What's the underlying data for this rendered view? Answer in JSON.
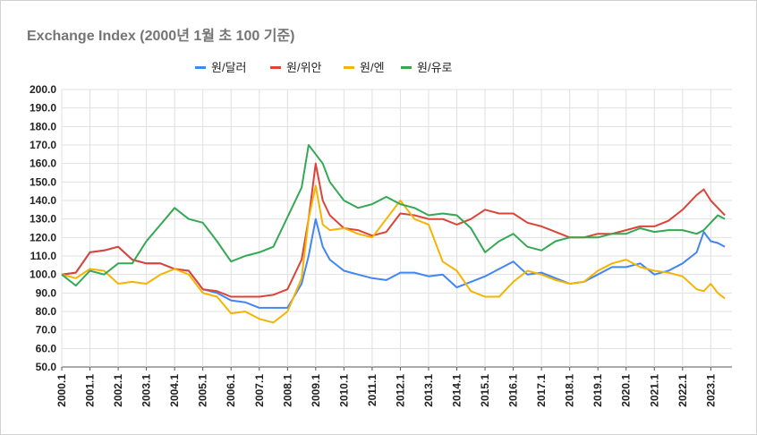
{
  "chart_data": {
    "type": "line",
    "title": "Exchange Index (2000년 1월 초 100 기준)",
    "xlabel": "",
    "ylabel": "",
    "ylim": [
      50,
      200
    ],
    "yticks": [
      "50.0",
      "60.0",
      "70.0",
      "80.0",
      "90.0",
      "100.0",
      "110.0",
      "120.0",
      "130.0",
      "140.0",
      "150.0",
      "160.0",
      "170.0",
      "180.0",
      "190.0",
      "200.0"
    ],
    "xticks": [
      "2000.1",
      "2001.1",
      "2002.1",
      "2003.1",
      "2004.1",
      "2005.1",
      "2006.1",
      "2007.1",
      "2008.1",
      "2009.1",
      "2010.1",
      "2011.1",
      "2012.1",
      "2013.1",
      "2014.1",
      "2015.1",
      "2016.1",
      "2017.1",
      "2018.1",
      "2019.1",
      "2020.1",
      "2021.1",
      "2022.1",
      "2023.1"
    ],
    "x": [
      2000.0,
      2000.5,
      2001.0,
      2001.5,
      2002.0,
      2002.5,
      2003.0,
      2003.5,
      2004.0,
      2004.5,
      2005.0,
      2005.5,
      2006.0,
      2006.5,
      2007.0,
      2007.5,
      2008.0,
      2008.5,
      2008.75,
      2009.0,
      2009.25,
      2009.5,
      2010.0,
      2010.5,
      2011.0,
      2011.5,
      2012.0,
      2012.5,
      2013.0,
      2013.5,
      2014.0,
      2014.5,
      2015.0,
      2015.5,
      2016.0,
      2016.5,
      2017.0,
      2017.5,
      2018.0,
      2018.5,
      2019.0,
      2019.5,
      2020.0,
      2020.5,
      2021.0,
      2021.5,
      2022.0,
      2022.5,
      2022.75,
      2023.0,
      2023.25,
      2023.5
    ],
    "grid": true,
    "legend_position": "top-center",
    "series": [
      {
        "name": "원/달러",
        "color": "#4285f4",
        "values": [
          100,
          101,
          112,
          113,
          115,
          108,
          106,
          106,
          103,
          102,
          92,
          90,
          86,
          85,
          82,
          82,
          82,
          95,
          110,
          130,
          115,
          108,
          102,
          100,
          98,
          97,
          101,
          101,
          99,
          100,
          93,
          96,
          99,
          103,
          107,
          100,
          101,
          98,
          95,
          96,
          100,
          104,
          104,
          106,
          100,
          102,
          106,
          112,
          123,
          118,
          117,
          115
        ]
      },
      {
        "name": "원/위안",
        "color": "#db4437",
        "values": [
          100,
          101,
          112,
          113,
          115,
          108,
          106,
          106,
          103,
          102,
          92,
          91,
          88,
          88,
          88,
          89,
          92,
          108,
          130,
          160,
          140,
          132,
          125,
          124,
          121,
          123,
          133,
          132,
          130,
          130,
          127,
          130,
          135,
          133,
          133,
          128,
          126,
          123,
          120,
          120,
          122,
          122,
          124,
          126,
          126,
          129,
          135,
          143,
          146,
          140,
          136,
          132
        ]
      },
      {
        "name": "원/엔",
        "color": "#f4b400",
        "values": [
          100,
          98,
          103,
          102,
          95,
          96,
          95,
          100,
          103,
          100,
          90,
          88,
          79,
          80,
          76,
          74,
          80,
          98,
          130,
          148,
          127,
          124,
          125,
          122,
          120,
          130,
          140,
          130,
          127,
          107,
          102,
          91,
          88,
          88,
          96,
          102,
          100,
          97,
          95,
          96,
          102,
          106,
          108,
          104,
          102,
          101,
          99,
          92,
          91,
          95,
          90,
          87
        ]
      },
      {
        "name": "원/유로",
        "color": "#34a853",
        "values": [
          100,
          94,
          102,
          100,
          106,
          106,
          118,
          127,
          136,
          130,
          128,
          118,
          107,
          110,
          112,
          115,
          131,
          147,
          170,
          165,
          160,
          150,
          140,
          136,
          138,
          142,
          138,
          136,
          132,
          133,
          132,
          125,
          112,
          118,
          122,
          115,
          113,
          118,
          120,
          120,
          120,
          122,
          122,
          125,
          123,
          124,
          124,
          122,
          124,
          128,
          132,
          130
        ]
      }
    ]
  }
}
